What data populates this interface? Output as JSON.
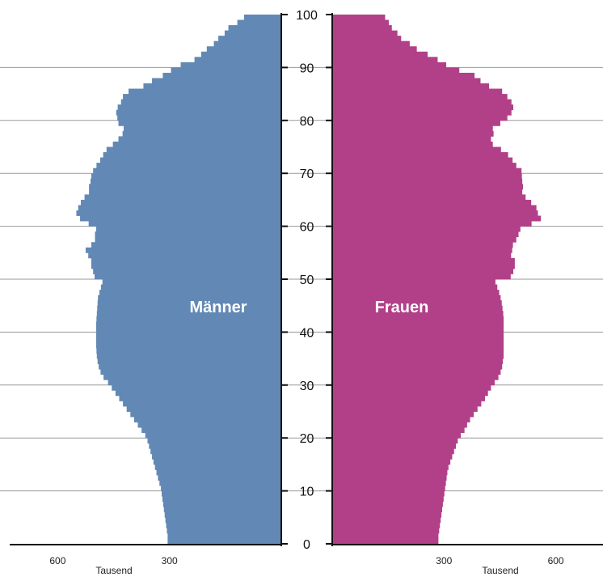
{
  "chart_data": {
    "type": "bar",
    "orientation": "horizontal-population-pyramid",
    "title": "",
    "ylabel": "",
    "xlabel": "Tausend",
    "y_ticks": [
      "0",
      "10",
      "20",
      "30",
      "40",
      "50",
      "60",
      "70",
      "80",
      "90",
      "100"
    ],
    "x_ticks": [
      "600",
      "300"
    ],
    "x_unit": "Tausend",
    "xlim": [
      0,
      750
    ],
    "ylim": [
      0,
      100
    ],
    "grid": true,
    "ages": [
      0,
      1,
      2,
      3,
      4,
      5,
      6,
      7,
      8,
      9,
      10,
      11,
      12,
      13,
      14,
      15,
      16,
      17,
      18,
      19,
      20,
      21,
      22,
      23,
      24,
      25,
      26,
      27,
      28,
      29,
      30,
      31,
      32,
      33,
      34,
      35,
      36,
      37,
      38,
      39,
      40,
      41,
      42,
      43,
      44,
      45,
      46,
      47,
      48,
      49,
      50,
      51,
      52,
      53,
      54,
      55,
      56,
      57,
      58,
      59,
      60,
      61,
      62,
      63,
      64,
      65,
      66,
      67,
      68,
      69,
      70,
      71,
      72,
      73,
      74,
      75,
      76,
      77,
      78,
      79,
      80,
      81,
      82,
      83,
      84,
      85,
      86,
      87,
      88,
      89,
      90,
      91,
      92,
      93,
      94,
      95,
      96,
      97,
      98,
      99,
      100
    ],
    "series": [
      {
        "name": "Männer",
        "color": "#6289b5",
        "values": [
          305,
          305,
          307,
          309,
          311,
          313,
          315,
          317,
          319,
          321,
          323,
          327,
          331,
          335,
          339,
          343,
          347,
          351,
          355,
          359,
          365,
          375,
          385,
          395,
          405,
          415,
          425,
          435,
          445,
          455,
          465,
          477,
          485,
          490,
          493,
          495,
          496,
          497,
          497,
          497,
          497,
          497,
          496,
          495,
          494,
          493,
          492,
          488,
          484,
          480,
          501,
          505,
          510,
          510,
          518,
          525,
          510,
          500,
          500,
          497,
          517,
          540,
          550,
          545,
          538,
          528,
          516,
          516,
          512,
          510,
          505,
          496,
          486,
          478,
          469,
          452,
          437,
          426,
          423,
          437,
          440,
          443,
          439,
          430,
          425,
          410,
          370,
          347,
          318,
          296,
          270,
          233,
          215,
          200,
          181,
          169,
          152,
          142,
          118,
          100,
          0
        ]
      },
      {
        "name": "Frauen",
        "color": "#b14088",
        "values": [
          285,
          285,
          287,
          289,
          291,
          293,
          295,
          297,
          299,
          301,
          303,
          305,
          307,
          309,
          312,
          317,
          322,
          327,
          332,
          337,
          345,
          355,
          362,
          370,
          380,
          390,
          400,
          410,
          418,
          426,
          436,
          446,
          452,
          456,
          458,
          460,
          460,
          460,
          460,
          460,
          460,
          460,
          460,
          459,
          457,
          455,
          452,
          448,
          443,
          438,
          479,
          486,
          490,
          490,
          480,
          483,
          485,
          494,
          500,
          505,
          535,
          560,
          552,
          548,
          534,
          519,
          510,
          512,
          510,
          509,
          508,
          494,
          484,
          472,
          453,
          431,
          426,
          433,
          431,
          451,
          470,
          481,
          486,
          481,
          470,
          456,
          421,
          398,
          382,
          341,
          306,
          283,
          256,
          227,
          208,
          185,
          175,
          160,
          152,
          142,
          0
        ]
      }
    ]
  },
  "labels": {
    "men": "Männer",
    "women": "Frauen",
    "x_unit_left": "Tausend",
    "x_unit_right": "Tausend"
  },
  "colors": {
    "men": "#6289b5",
    "women": "#b14088",
    "axis": "#111111",
    "grid": "#9a9a9a"
  }
}
